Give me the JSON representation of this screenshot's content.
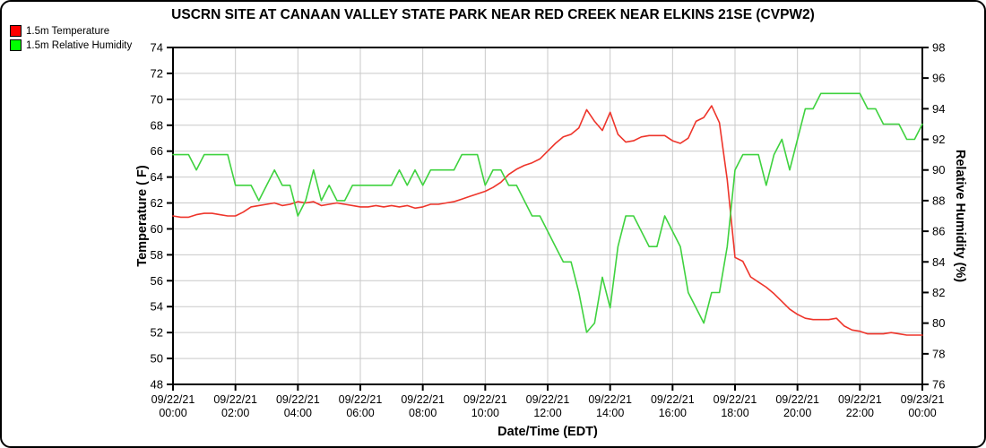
{
  "chart_data": {
    "type": "line",
    "title": "USCRN SITE AT CANAAN VALLEY STATE PARK NEAR RED CREEK NEAR ELKINS 21SE (CVPW2)",
    "xlabel": "Date/Time (EDT)",
    "ylabel_left": "Temperature ( F)",
    "ylabel_right": "Relative Humidity (%)",
    "xlim_hours": [
      0,
      24
    ],
    "ylim_left": [
      48,
      74
    ],
    "ylim_right": [
      76,
      98
    ],
    "grid": true,
    "legend_position": "top-left",
    "x_unit": "hours since 09/22/21 00:00 EDT",
    "data_resolution": "approx 15-minute readings traced from plot",
    "y_ticks_left": [
      48,
      50,
      52,
      54,
      56,
      58,
      60,
      62,
      64,
      66,
      68,
      70,
      72,
      74
    ],
    "y_ticks_right": [
      76,
      78,
      80,
      82,
      84,
      86,
      88,
      90,
      92,
      94,
      96,
      98
    ],
    "x_ticks": [
      {
        "h": 0,
        "date": "09/22/21",
        "time": "00:00"
      },
      {
        "h": 2,
        "date": "09/22/21",
        "time": "02:00"
      },
      {
        "h": 4,
        "date": "09/22/21",
        "time": "04:00"
      },
      {
        "h": 6,
        "date": "09/22/21",
        "time": "06:00"
      },
      {
        "h": 8,
        "date": "09/22/21",
        "time": "08:00"
      },
      {
        "h": 10,
        "date": "09/22/21",
        "time": "10:00"
      },
      {
        "h": 12,
        "date": "09/22/21",
        "time": "12:00"
      },
      {
        "h": 14,
        "date": "09/22/21",
        "time": "14:00"
      },
      {
        "h": 16,
        "date": "09/22/21",
        "time": "16:00"
      },
      {
        "h": 18,
        "date": "09/22/21",
        "time": "18:00"
      },
      {
        "h": 20,
        "date": "09/22/21",
        "time": "20:00"
      },
      {
        "h": 22,
        "date": "09/22/21",
        "time": "22:00"
      },
      {
        "h": 24,
        "date": "09/23/21",
        "time": "00:00"
      }
    ],
    "series": [
      {
        "name": "1.5m Temperature",
        "axis": "left",
        "unit": "F",
        "line_color": "#ee352b",
        "legend_color": "#ff0000",
        "points": [
          [
            0,
            61.0
          ],
          [
            0.25,
            60.9
          ],
          [
            0.5,
            60.9
          ],
          [
            0.75,
            61.1
          ],
          [
            1,
            61.2
          ],
          [
            1.25,
            61.2
          ],
          [
            1.5,
            61.1
          ],
          [
            1.75,
            61.0
          ],
          [
            2,
            61.0
          ],
          [
            2.25,
            61.3
          ],
          [
            2.5,
            61.7
          ],
          [
            2.75,
            61.8
          ],
          [
            3,
            61.9
          ],
          [
            3.25,
            62.0
          ],
          [
            3.5,
            61.8
          ],
          [
            3.75,
            61.9
          ],
          [
            4,
            62.1
          ],
          [
            4.25,
            62.0
          ],
          [
            4.5,
            62.1
          ],
          [
            4.75,
            61.8
          ],
          [
            5,
            61.9
          ],
          [
            5.25,
            62.0
          ],
          [
            5.5,
            61.9
          ],
          [
            5.75,
            61.8
          ],
          [
            6,
            61.7
          ],
          [
            6.25,
            61.7
          ],
          [
            6.5,
            61.8
          ],
          [
            6.75,
            61.7
          ],
          [
            7,
            61.8
          ],
          [
            7.25,
            61.7
          ],
          [
            7.5,
            61.8
          ],
          [
            7.75,
            61.6
          ],
          [
            8,
            61.7
          ],
          [
            8.25,
            61.9
          ],
          [
            8.5,
            61.9
          ],
          [
            8.75,
            62.0
          ],
          [
            9,
            62.1
          ],
          [
            9.25,
            62.3
          ],
          [
            9.5,
            62.5
          ],
          [
            9.75,
            62.7
          ],
          [
            10,
            62.9
          ],
          [
            10.25,
            63.2
          ],
          [
            10.5,
            63.6
          ],
          [
            10.75,
            64.2
          ],
          [
            11,
            64.6
          ],
          [
            11.25,
            64.9
          ],
          [
            11.5,
            65.1
          ],
          [
            11.75,
            65.4
          ],
          [
            12,
            66.0
          ],
          [
            12.25,
            66.6
          ],
          [
            12.5,
            67.1
          ],
          [
            12.75,
            67.3
          ],
          [
            13,
            67.8
          ],
          [
            13.25,
            69.2
          ],
          [
            13.5,
            68.3
          ],
          [
            13.75,
            67.6
          ],
          [
            14,
            69.0
          ],
          [
            14.25,
            67.3
          ],
          [
            14.5,
            66.7
          ],
          [
            14.75,
            66.8
          ],
          [
            15,
            67.1
          ],
          [
            15.25,
            67.2
          ],
          [
            15.5,
            67.2
          ],
          [
            15.75,
            67.2
          ],
          [
            16,
            66.8
          ],
          [
            16.25,
            66.6
          ],
          [
            16.5,
            67.0
          ],
          [
            16.75,
            68.3
          ],
          [
            17,
            68.6
          ],
          [
            17.25,
            69.5
          ],
          [
            17.5,
            68.2
          ],
          [
            17.75,
            63.8
          ],
          [
            18,
            57.8
          ],
          [
            18.25,
            57.5
          ],
          [
            18.5,
            56.3
          ],
          [
            18.75,
            55.9
          ],
          [
            19,
            55.5
          ],
          [
            19.25,
            55.0
          ],
          [
            19.5,
            54.4
          ],
          [
            19.75,
            53.8
          ],
          [
            20,
            53.4
          ],
          [
            20.25,
            53.1
          ],
          [
            20.5,
            53.0
          ],
          [
            20.75,
            53.0
          ],
          [
            21,
            53.0
          ],
          [
            21.25,
            53.1
          ],
          [
            21.5,
            52.5
          ],
          [
            21.75,
            52.2
          ],
          [
            22,
            52.1
          ],
          [
            22.25,
            51.9
          ],
          [
            22.5,
            51.9
          ],
          [
            22.75,
            51.9
          ],
          [
            23,
            52.0
          ],
          [
            23.25,
            51.9
          ],
          [
            23.5,
            51.8
          ],
          [
            23.75,
            51.8
          ],
          [
            24,
            51.8
          ]
        ]
      },
      {
        "name": "1.5m Relative Humidity",
        "axis": "right",
        "unit": "%",
        "line_color": "#3fd23f",
        "legend_color": "#00ff00",
        "points": [
          [
            0,
            91
          ],
          [
            0.25,
            91
          ],
          [
            0.5,
            91
          ],
          [
            0.75,
            90
          ],
          [
            1,
            91
          ],
          [
            1.25,
            91
          ],
          [
            1.5,
            91
          ],
          [
            1.75,
            91
          ],
          [
            2,
            89
          ],
          [
            2.25,
            89
          ],
          [
            2.5,
            89
          ],
          [
            2.75,
            88
          ],
          [
            3,
            89
          ],
          [
            3.25,
            90
          ],
          [
            3.5,
            89
          ],
          [
            3.75,
            89
          ],
          [
            4,
            87
          ],
          [
            4.25,
            88
          ],
          [
            4.5,
            90
          ],
          [
            4.75,
            88
          ],
          [
            5,
            89
          ],
          [
            5.25,
            88
          ],
          [
            5.5,
            88
          ],
          [
            5.75,
            89
          ],
          [
            6,
            89
          ],
          [
            6.25,
            89
          ],
          [
            6.5,
            89
          ],
          [
            6.75,
            89
          ],
          [
            7,
            89
          ],
          [
            7.25,
            90
          ],
          [
            7.5,
            89
          ],
          [
            7.75,
            90
          ],
          [
            8,
            89
          ],
          [
            8.25,
            90
          ],
          [
            8.5,
            90
          ],
          [
            8.75,
            90
          ],
          [
            9,
            90
          ],
          [
            9.25,
            91
          ],
          [
            9.5,
            91
          ],
          [
            9.75,
            91
          ],
          [
            10,
            89
          ],
          [
            10.25,
            90
          ],
          [
            10.5,
            90
          ],
          [
            10.75,
            89
          ],
          [
            11,
            89
          ],
          [
            11.25,
            88
          ],
          [
            11.5,
            87
          ],
          [
            11.75,
            87
          ],
          [
            12,
            86
          ],
          [
            12.25,
            85
          ],
          [
            12.5,
            84
          ],
          [
            12.75,
            84
          ],
          [
            13,
            82
          ],
          [
            13.25,
            79.4
          ],
          [
            13.5,
            80
          ],
          [
            13.75,
            83
          ],
          [
            14,
            81
          ],
          [
            14.25,
            85
          ],
          [
            14.5,
            87
          ],
          [
            14.75,
            87
          ],
          [
            15,
            86
          ],
          [
            15.25,
            85
          ],
          [
            15.5,
            85
          ],
          [
            15.75,
            87
          ],
          [
            16,
            86
          ],
          [
            16.25,
            85
          ],
          [
            16.5,
            82
          ],
          [
            16.75,
            81
          ],
          [
            17,
            80
          ],
          [
            17.25,
            82
          ],
          [
            17.5,
            82
          ],
          [
            17.75,
            85
          ],
          [
            18,
            90
          ],
          [
            18.25,
            91
          ],
          [
            18.5,
            91
          ],
          [
            18.75,
            91
          ],
          [
            19,
            89
          ],
          [
            19.25,
            91
          ],
          [
            19.5,
            92
          ],
          [
            19.75,
            90
          ],
          [
            20,
            92
          ],
          [
            20.25,
            94
          ],
          [
            20.5,
            94
          ],
          [
            20.75,
            95
          ],
          [
            21,
            95
          ],
          [
            21.25,
            95
          ],
          [
            21.5,
            95
          ],
          [
            21.75,
            95
          ],
          [
            22,
            95
          ],
          [
            22.25,
            94
          ],
          [
            22.5,
            94
          ],
          [
            22.75,
            93
          ],
          [
            23,
            93
          ],
          [
            23.25,
            93
          ],
          [
            23.5,
            92
          ],
          [
            23.75,
            92
          ],
          [
            24,
            93
          ]
        ]
      }
    ],
    "style": {
      "grid_color": "#c9c9c9",
      "axis_color": "#000000",
      "background": "#ffffff"
    }
  }
}
